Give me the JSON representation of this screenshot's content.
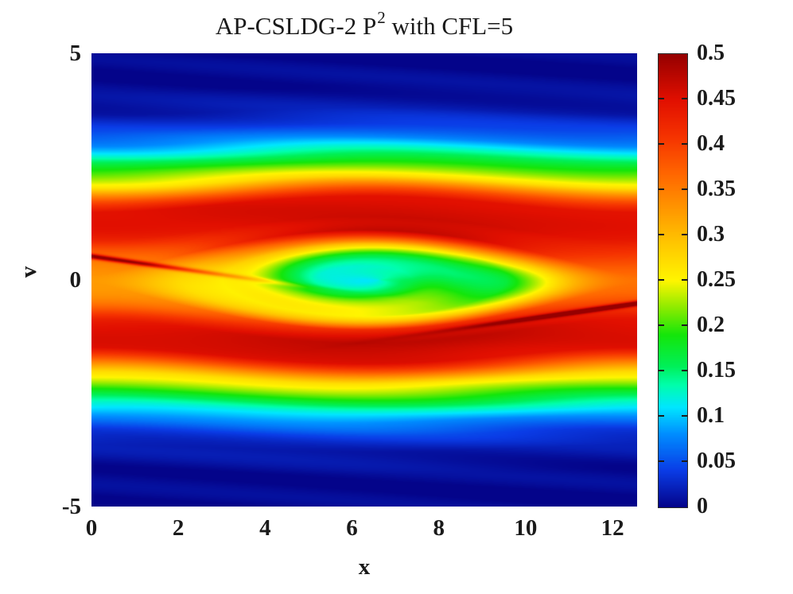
{
  "title": {
    "prefix": "AP-CSLDG-2 P",
    "superscript": "2",
    "suffix": " with CFL=5"
  },
  "axes": {
    "x": {
      "label": "x",
      "range": [
        0,
        12.566
      ],
      "tick_values": [
        0,
        2,
        4,
        6,
        8,
        10,
        12
      ],
      "tick_labels": [
        "0",
        "2",
        "4",
        "6",
        "8",
        "10",
        "12"
      ]
    },
    "y": {
      "label": "v",
      "range": [
        -5,
        5
      ],
      "tick_values": [
        5,
        0,
        -5
      ],
      "tick_labels": [
        "5",
        "0",
        "-5"
      ]
    }
  },
  "colorbar": {
    "min": 0,
    "max": 0.5,
    "tick_values": [
      0.5,
      0.45,
      0.4,
      0.35,
      0.3,
      0.25,
      0.2,
      0.15,
      0.1,
      0.05,
      0
    ],
    "tick_labels": [
      "0.5",
      "0.45",
      "0.4",
      "0.35",
      "0.3",
      "0.25",
      "0.2",
      "0.15",
      "0.1",
      "0.05",
      "0"
    ]
  },
  "chart_data": {
    "type": "heatmap",
    "title": "AP-CSLDG-2 P^2 with CFL=5",
    "xlabel": "x",
    "ylabel": "v",
    "x_range": [
      0,
      12.566
    ],
    "y_range": [
      -5,
      5
    ],
    "value_range": [
      0,
      0.5
    ],
    "grid": false,
    "colormap": {
      "name": "jet-rainbow",
      "stops": [
        [
          0.0,
          [
            4,
            4,
            138
          ]
        ],
        [
          0.08,
          [
            10,
            60,
            230
          ]
        ],
        [
          0.16,
          [
            0,
            140,
            255
          ]
        ],
        [
          0.22,
          [
            0,
            230,
            255
          ]
        ],
        [
          0.27,
          [
            0,
            255,
            170
          ]
        ],
        [
          0.31,
          [
            0,
            240,
            90
          ]
        ],
        [
          0.38,
          [
            20,
            230,
            10
          ]
        ],
        [
          0.44,
          [
            140,
            235,
            0
          ]
        ],
        [
          0.5,
          [
            255,
            245,
            0
          ]
        ],
        [
          0.58,
          [
            255,
            200,
            0
          ]
        ],
        [
          0.66,
          [
            255,
            150,
            0
          ]
        ],
        [
          0.74,
          [
            255,
            100,
            0
          ]
        ],
        [
          0.82,
          [
            245,
            50,
            0
          ]
        ],
        [
          0.9,
          [
            225,
            15,
            0
          ]
        ],
        [
          1.0,
          [
            150,
            0,
            0
          ]
        ]
      ]
    },
    "field_model": {
      "description": "Vlasov-Poisson phase-space distribution f(x,v): trapped-particle vortex (pendulum separatrix eye) centered at (x0,0) spanning the periodic x-domain, with spiral phase-mixing filaments inside the eye, orange dips near the X-points at the domain edges, and thin tilted red filaments entering at v=+0.5 (left edge) and v=-0.5 (right edge)",
      "L": 12.5664,
      "k": 0.5,
      "x0": 6.2832,
      "phi0": 0.3,
      "aspect": 0.174,
      "radial_profile": [
        [
          0.0,
          0.115
        ],
        [
          0.3,
          0.145
        ],
        [
          0.55,
          0.2
        ],
        [
          0.8,
          0.27
        ],
        [
          0.95,
          0.35
        ],
        [
          1.1,
          0.445
        ],
        [
          1.4,
          0.47
        ],
        [
          1.85,
          0.45
        ],
        [
          2.05,
          0.38
        ],
        [
          2.3,
          0.27
        ],
        [
          2.6,
          0.2
        ],
        [
          2.9,
          0.13
        ],
        [
          3.15,
          0.082
        ],
        [
          3.45,
          0.042
        ],
        [
          3.8,
          0.016
        ],
        [
          4.3,
          0.005
        ],
        [
          5.2,
          0.001
        ]
      ],
      "spiral": {
        "amplitude": 0.05,
        "winding": 5.5,
        "phase": 0.8,
        "center_shift": 0.35,
        "envelope_center": 0.75,
        "envelope_width": 0.5
      },
      "xpoint_dip": {
        "amplitude": 0.1,
        "s_center": 1.1,
        "s_width": 0.4
      },
      "filaments": [
        {
          "edge": "left",
          "v_edge": 0.52,
          "slope": -0.135,
          "width": 0.055,
          "amplitude": 0.16,
          "fade_length": 3.5
        },
        {
          "edge": "right",
          "v_edge": -0.52,
          "slope": 0.135,
          "width": 0.055,
          "amplitude": 0.16,
          "fade_length": 3.5
        }
      ],
      "ripple": {
        "amplitude": 0.006,
        "freq_v": 8.0,
        "freq_x": 0.5,
        "min_s": 1.2
      }
    }
  },
  "layout_colors": {
    "background": "#ffffff",
    "text": "#1a1a1a",
    "colorbar_border": "#2a2a2a"
  }
}
